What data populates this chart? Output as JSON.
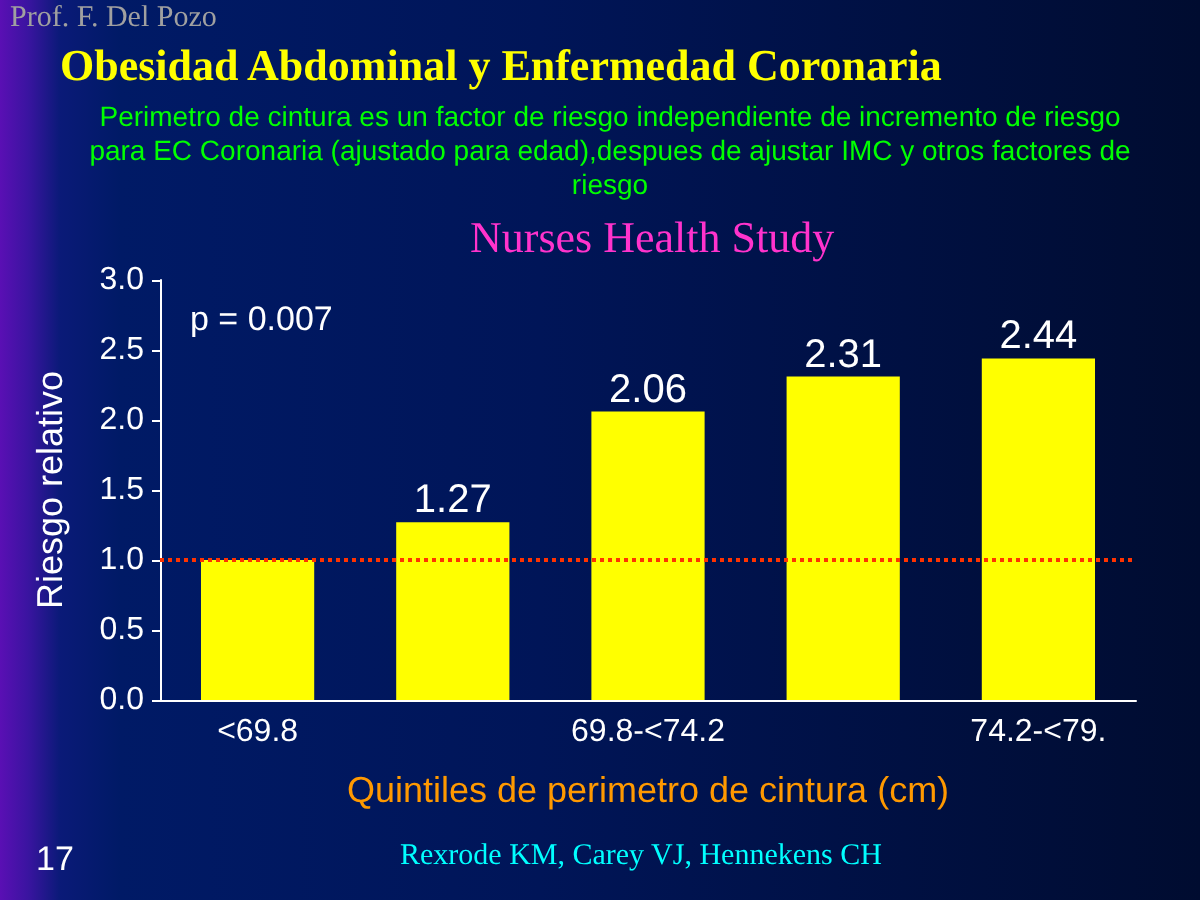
{
  "chart_data": {
    "type": "bar",
    "title": "Obesidad Abdominal y Enfermedad Coronaria",
    "subtitle": "Perimetro de cintura es un factor de riesgo independiente de incremento de riesgo para EC Coronaria (ajustado para edad),despues de ajustar IMC y otros factores de riesgo",
    "annotations": [
      "Prof. F. Del Pozo",
      "Nurses Health Study",
      "p = 0.007",
      "Rexrode KM, Carey VJ, Hennekens CH",
      "17"
    ],
    "xlabel": "Quintiles de perimetro de cintura (cm)",
    "ylabel": "Riesgo relativo",
    "categories": [
      "<69.8",
      null,
      "69.8-<74.2",
      null,
      "74.2-<79."
    ],
    "values": [
      1.0,
      1.27,
      2.06,
      2.31,
      2.44
    ],
    "value_labels": [
      null,
      "1.27",
      "2.06",
      "2.31",
      "2.44"
    ],
    "color": "#ffff00",
    "ylim": [
      0,
      3
    ],
    "yticks": [
      {
        "value": 0,
        "label": "0.0"
      },
      {
        "value": 0.5,
        "label": "0.5"
      },
      {
        "value": 1,
        "label": "1.0"
      },
      {
        "value": 1.5,
        "label": "1.5"
      },
      {
        "value": 2,
        "label": "2.0"
      },
      {
        "value": 2.5,
        "label": "2.5"
      },
      {
        "value": 3,
        "label": "3.0"
      }
    ],
    "ref_lines": [
      {
        "axis": "y",
        "value": 1,
        "color": "#ff3300",
        "line_style": "dotted"
      }
    ],
    "grid": false
  }
}
